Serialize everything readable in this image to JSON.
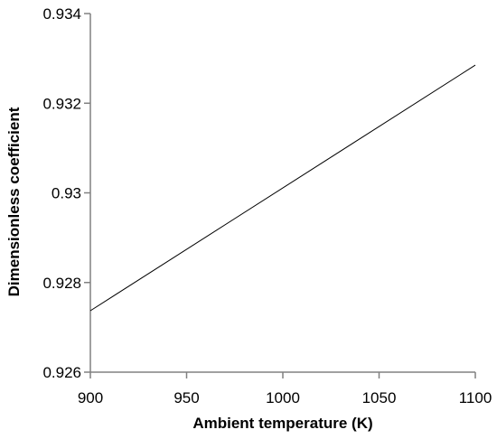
{
  "chart_data": {
    "type": "line",
    "title": "",
    "xlabel": "Ambient temperature (K)",
    "ylabel": "Dimensionless coefficient",
    "xlim": [
      900,
      1100
    ],
    "ylim": [
      0.926,
      0.934
    ],
    "x_ticks": [
      900,
      950,
      1000,
      1050,
      1100
    ],
    "x_tick_labels": [
      "900",
      "950",
      "1000",
      "1050",
      "1100"
    ],
    "y_ticks": [
      0.926,
      0.928,
      0.93,
      0.932,
      0.934
    ],
    "y_tick_labels": [
      "0.926",
      "0.928",
      "0.93",
      "0.932",
      "0.934"
    ],
    "grid": false,
    "legend": "none",
    "series": [
      {
        "color": "#000000",
        "x": [
          900,
          1100
        ],
        "y": [
          0.92737,
          0.93285
        ]
      }
    ]
  }
}
